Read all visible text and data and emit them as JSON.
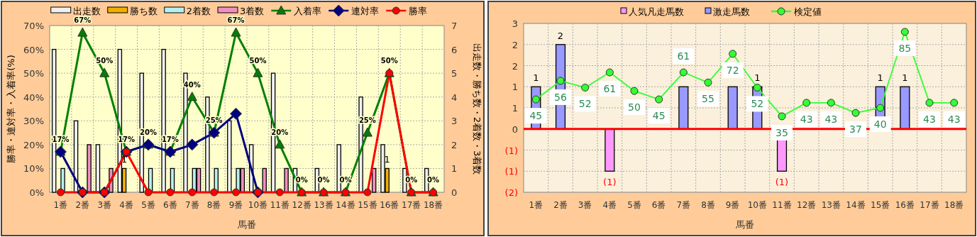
{
  "chart_data": [
    {
      "type": "bar",
      "xlabel": "馬番",
      "ylabel": "勝率・連対率・入着率(%)",
      "y2label": "出走数・勝ち数・2着数・3着数",
      "categories": [
        "1番",
        "2番",
        "3番",
        "4番",
        "5番",
        "6番",
        "7番",
        "8番",
        "9番",
        "10番",
        "11番",
        "12番",
        "13番",
        "14番",
        "15番",
        "16番",
        "17番",
        "18番"
      ],
      "ylim": [
        0,
        70
      ],
      "yticks": [
        {
          "value": 0,
          "label": "0%"
        },
        {
          "value": 10,
          "label": "10%"
        },
        {
          "value": 20,
          "label": "20%"
        },
        {
          "value": 30,
          "label": "30%"
        },
        {
          "value": 40,
          "label": "40%"
        },
        {
          "value": 50,
          "label": "50%"
        },
        {
          "value": 60,
          "label": "60%"
        },
        {
          "value": 70,
          "label": "70%"
        }
      ],
      "y2lim": [
        0,
        7
      ],
      "y2ticks": [
        0,
        1,
        2,
        3,
        4,
        5,
        6,
        7
      ],
      "grid": true,
      "legend": "top",
      "series": [
        {
          "name": "出走数",
          "color": "#f0f0f0",
          "axis": "y2",
          "values": [
            6,
            3,
            2,
            6,
            5,
            6,
            5,
            4,
            3,
            2,
            5,
            1,
            1,
            2,
            4,
            2,
            1,
            1
          ]
        },
        {
          "name": "勝ち数",
          "color": "#f0b000",
          "axis": "y2",
          "values": [
            0,
            0,
            0,
            1,
            0,
            0,
            0,
            0,
            0,
            0,
            0,
            0,
            0,
            0,
            0,
            1,
            0,
            0
          ],
          "value_labels": [
            null,
            null,
            null,
            "1",
            null,
            null,
            null,
            null,
            null,
            null,
            null,
            null,
            null,
            null,
            null,
            "1",
            null,
            null
          ]
        },
        {
          "name": "2着数",
          "color": "#b8f0f0",
          "axis": "y2",
          "values": [
            1,
            0,
            0,
            0,
            1,
            1,
            1,
            1,
            1,
            0,
            0,
            0,
            0,
            0,
            0,
            0,
            0,
            0
          ]
        },
        {
          "name": "3着数",
          "color": "#f090c0",
          "axis": "y2",
          "values": [
            0,
            2,
            1,
            0,
            0,
            0,
            1,
            0,
            1,
            1,
            1,
            0,
            0,
            0,
            1,
            0,
            0,
            0
          ]
        },
        {
          "name": "入着率",
          "type": "line",
          "color": "#008000",
          "marker": "triangle",
          "values": [
            17,
            67,
            50,
            17,
            20,
            17,
            40,
            25,
            67,
            50,
            20,
            0,
            0,
            0,
            25,
            50,
            0,
            0
          ],
          "value_labels": [
            "17%",
            "67%",
            "50%",
            "17%",
            "20%",
            "17%",
            "40%",
            "25%",
            "67%",
            "50%",
            "20%",
            "0%",
            "0%",
            "0%",
            "25%",
            "50%",
            "0%",
            "0%"
          ]
        },
        {
          "name": "連対率",
          "type": "line",
          "color": "#000080",
          "marker": "diamond",
          "values": [
            17,
            0,
            0,
            17,
            20,
            17,
            20,
            25,
            33,
            0,
            null,
            null,
            null,
            null,
            null,
            null,
            null,
            null
          ]
        },
        {
          "name": "勝率",
          "type": "line",
          "color": "#ff0000",
          "marker": "circle",
          "values": [
            0,
            0,
            0,
            17,
            0,
            0,
            0,
            0,
            0,
            0,
            0,
            0,
            0,
            0,
            0,
            50,
            0,
            0
          ]
        }
      ]
    },
    {
      "type": "bar",
      "xlabel": "馬番",
      "categories": [
        "1番",
        "2番",
        "3番",
        "4番",
        "5番",
        "6番",
        "7番",
        "8番",
        "9番",
        "10番",
        "11番",
        "12番",
        "13番",
        "14番",
        "15番",
        "16番",
        "17番",
        "18番"
      ],
      "ylim": [
        -1.5,
        2.5
      ],
      "yticks": [
        {
          "value": -1.5,
          "label": "(2)"
        },
        {
          "value": -1,
          "label": "(1)"
        },
        {
          "value": -0.5,
          "label": "(1)"
        },
        {
          "value": 0,
          "label": "0"
        },
        {
          "value": 0.5,
          "label": "1"
        },
        {
          "value": 1,
          "label": "1"
        },
        {
          "value": 1.5,
          "label": "2"
        },
        {
          "value": 2,
          "label": "2"
        },
        {
          "value": 2.5,
          "label": "3"
        }
      ],
      "y2lim": [
        -10,
        90
      ],
      "stacked": true,
      "grid": true,
      "legend": "top",
      "ref_lines": [
        {
          "axis": "y",
          "value": 0,
          "color": "#ff0000"
        }
      ],
      "series": [
        {
          "name": "人気凡走馬数",
          "color": "#ff99ff",
          "values": [
            null,
            null,
            null,
            -1,
            null,
            null,
            null,
            null,
            null,
            null,
            -1,
            null,
            null,
            null,
            null,
            null,
            null,
            null
          ],
          "value_labels": [
            null,
            null,
            null,
            "(1)",
            null,
            null,
            null,
            null,
            null,
            null,
            "(1)",
            null,
            null,
            null,
            null,
            null,
            null,
            null
          ]
        },
        {
          "name": "激走馬数",
          "color": "#9999ff",
          "values": [
            1,
            2,
            null,
            null,
            null,
            null,
            1,
            null,
            1,
            1,
            null,
            null,
            null,
            null,
            1,
            1,
            null,
            null
          ],
          "value_labels": [
            "1",
            "2",
            null,
            null,
            null,
            null,
            null,
            null,
            null,
            "1",
            null,
            null,
            null,
            null,
            "1",
            "1",
            null,
            null
          ]
        },
        {
          "name": "検定値",
          "type": "line",
          "axis": "y2",
          "color": "#33ff33",
          "marker": "circle",
          "values": [
            45,
            56,
            52,
            61,
            50,
            45,
            61,
            55,
            72,
            52,
            35,
            43,
            43,
            37,
            40,
            85,
            43,
            43
          ],
          "value_labels": [
            "45",
            "56",
            "52",
            "61",
            "50",
            "45",
            "61",
            "55",
            "72",
            "52",
            "35",
            "43",
            "43",
            "37",
            "40",
            "85",
            "43",
            "43"
          ]
        }
      ]
    }
  ]
}
